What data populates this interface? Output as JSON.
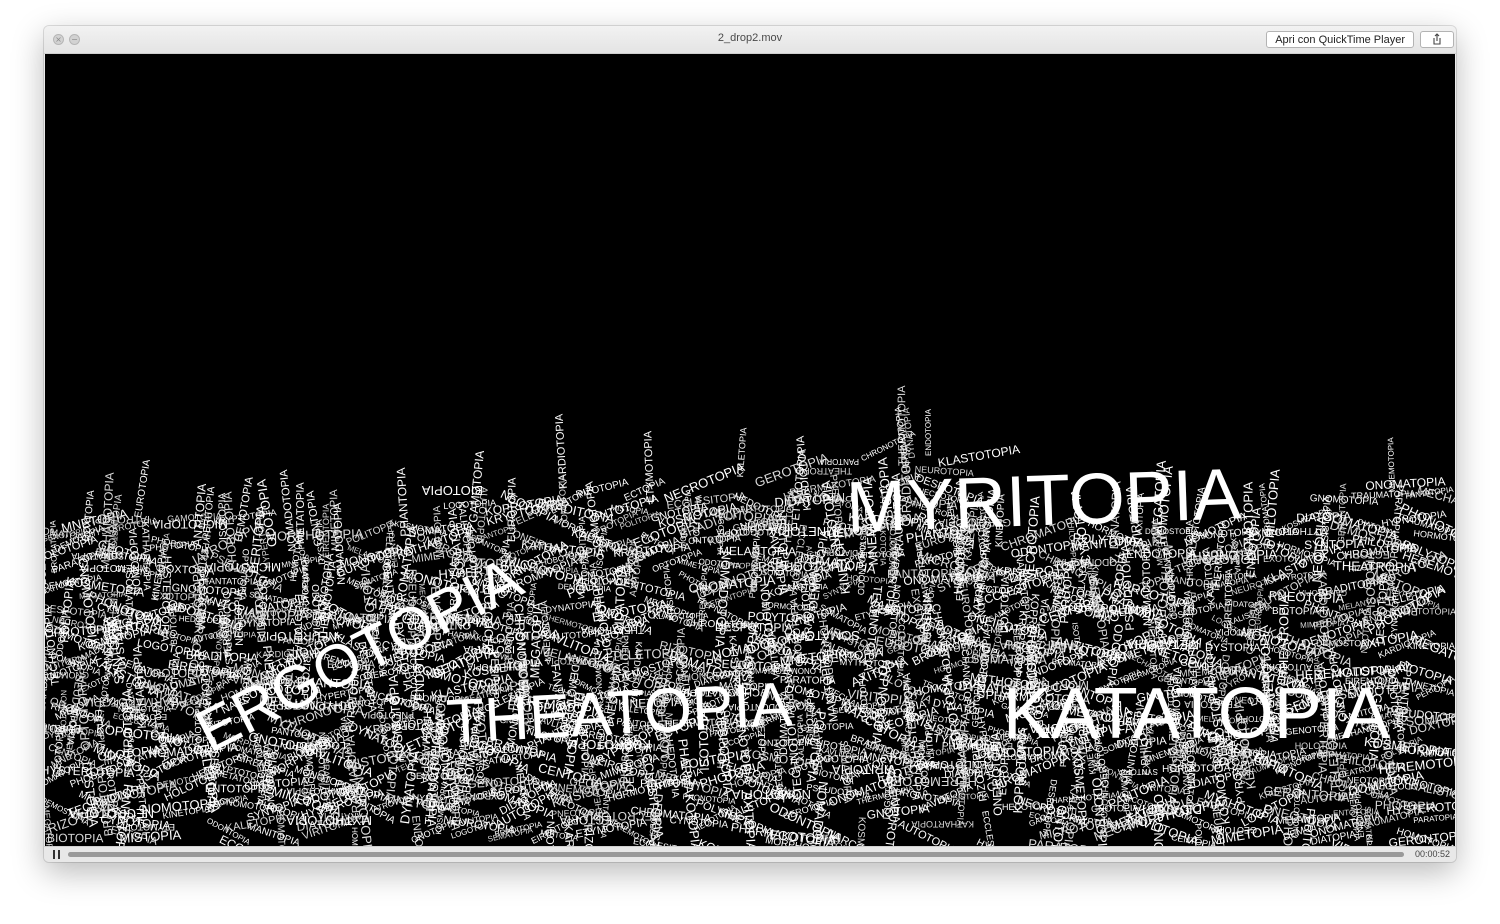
{
  "window": {
    "title": "2_drop2.mov",
    "open_button_label": "Apri con QuickTime Player",
    "close_glyph": "×",
    "minimize_glyph": "−"
  },
  "player": {
    "elapsed": "00:00:52",
    "progress_fraction": 1.0
  },
  "featured_words": [
    "MYRITOPIA",
    "ERGOTOPIA",
    "THEATOPIA",
    "KATATOPIA"
  ],
  "words": [
    "PSEUDOTOPIA",
    "MNETOPIA",
    "DYSTOPIA",
    "EUROTOPIA",
    "KATHARTOPIA",
    "GAMOTOPIA",
    "KRYPTOTOPIA",
    "MORPHOTOPIA",
    "POLITOPIA",
    "KOSMOTOPIA",
    "LOGOTOPIA",
    "AUTOTOPIA",
    "NEOTOPIA",
    "KARDIOTOPIA",
    "RIZOTOPIA",
    "ECTOPIA",
    "NECROTOPIA",
    "KALETOPIA",
    "GEROTOPIA",
    "NARCOTOPIA",
    "CHRONOTOPIA",
    "DYNATOPIA",
    "ENDOTOPIA",
    "KLASTOTOPIA",
    "GERONTOPIA",
    "PHILOTOPIA",
    "HORMOTOPIA",
    "DEMOSTOPIA",
    "PHONOTOPIA",
    "HOLOTOPIA",
    "GNOMOTOPIA",
    "ONOMATOPIA",
    "SOMATOPIA",
    "HYSTEROTOPIA",
    "IATROTOPIA",
    "HYPERTOPIA",
    "MICROTOPIA",
    "METATOPIA",
    "CENTOPIA",
    "MIMETOPIA",
    "MELANTOPIA",
    "TELETOPIA",
    "DOMATOPIA",
    "KALISTOPIA",
    "BIOTOPIA",
    "BRADITOPIA",
    "MISTOPIA",
    "ETYMOTOPIA",
    "ECCLESITOPIA",
    "HEDOTOPIA",
    "PHARMAKOTOPIA",
    "PANTOPIA",
    "THERMOTOPIA",
    "NEUROTOPIA",
    "PYROTOPIA",
    "KRISISTOPIA",
    "CHROMATOPIA",
    "POLYTOPIA",
    "AXITOPIA",
    "MEGATOPIA",
    "TECHNOTOPIA",
    "NOMOTOPIA",
    "EXOTOPIA",
    "SYNTOPIA",
    "DIATOPIA",
    "TRAUMATOPIA",
    "PARATOPIA",
    "MECHANOTOPIA",
    "GENOTOPIA",
    "DOXTOPIA",
    "GEOTOPIA",
    "PHOBOTOPIA",
    "PERITOPIA",
    "ISOTOPIA",
    "HEMOTOPIA",
    "OPTOTOPIA",
    "ODOTOPIA",
    "NOMADOTOPIA",
    "SEMATOPIA",
    "EIRENTOPIA",
    "MONOTOPIA",
    "PHANTOPIA",
    "ONEIROTOPIA",
    "KOPROTOPIA",
    "ECOTOPIA",
    "ONTOTOPIA",
    "GNOTOPIA",
    "KAVLITOPIA",
    "DIDATOPIA",
    "PNEOTOPIA",
    "THEATROPIA",
    "HEREMOTOPIA",
    "DESPOTOPIA",
    "CYNOTOPIA",
    "KINETOPIA",
    "ODONTOPIA",
    "MANITOPIA",
    "VIRITOPIA",
    "HOMOTOPIA",
    "MYTHOTOPIA",
    "HYPNOTOPIA",
    "BROMATOPIA",
    "KOSMETOPIA",
    "SOMATOPIA",
    "MNEMOTOPIA",
    "FANTATOPIA",
    "DEMOTOPIA",
    "ENTOTOPIA",
    "PHOTOPIA",
    "ANTITOPIA"
  ]
}
